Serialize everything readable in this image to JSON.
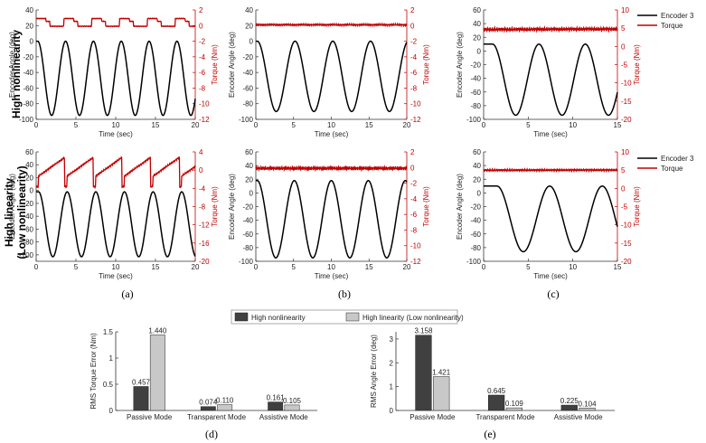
{
  "colors": {
    "encoder": "#000000",
    "torque": "#c00000",
    "bar_high": "#404040",
    "bar_low": "#c8c8c8"
  },
  "row_labels": [
    "High nonlinearity",
    "High linearity",
    "(Low nonlinearity)"
  ],
  "captions": [
    "(a)",
    "(b)",
    "(c)",
    "(d)",
    "(e)"
  ],
  "time_plots": [
    {
      "id": "a1",
      "type": "line",
      "xlabel": "Time (sec)",
      "ylabel": "Encoder Angle (deg)",
      "y2label": "Torque (Nm)",
      "xlim": [
        0,
        20
      ],
      "xticks": [
        0,
        5,
        10,
        15,
        20
      ],
      "ylim": [
        -100,
        40
      ],
      "yticks": [
        -100,
        -80,
        -60,
        -40,
        -20,
        0,
        20,
        40
      ],
      "y2lim": [
        -12,
        2
      ],
      "y2ticks": [
        -12,
        -10,
        -8,
        -6,
        -4,
        -2,
        0,
        2
      ],
      "encoder": {
        "period": 3.5,
        "min": -95,
        "max": 0,
        "start": 0.2
      },
      "torque": {
        "mode": "square",
        "base": 0.0,
        "amp": 0.9,
        "period": 3.5
      }
    },
    {
      "id": "b1",
      "type": "line",
      "xlabel": "Time (sec)",
      "ylabel": "Encoder Angle (deg)",
      "y2label": "Torque (Nm)",
      "xlim": [
        0,
        20
      ],
      "xticks": [
        0,
        5,
        10,
        15,
        20
      ],
      "ylim": [
        -100,
        40
      ],
      "yticks": [
        -100,
        -80,
        -60,
        -40,
        -20,
        0,
        20,
        40
      ],
      "y2lim": [
        -12,
        2
      ],
      "y2ticks": [
        -12,
        -10,
        -8,
        -6,
        -4,
        -2,
        0,
        2
      ],
      "encoder": {
        "period": 5.0,
        "min": -90,
        "max": 0,
        "start": 0.2
      },
      "torque": {
        "mode": "flat",
        "base": 0.1,
        "amp": 0.12,
        "period": 5.0
      }
    },
    {
      "id": "c1",
      "type": "line",
      "xlabel": "Time (sec)",
      "ylabel": "Encoder Angle (deg)",
      "y2label": "Torque (Nm)",
      "xlim": [
        0,
        15
      ],
      "xticks": [
        0,
        5,
        10,
        15
      ],
      "ylim": [
        -100,
        60
      ],
      "yticks": [
        -100,
        -80,
        -60,
        -40,
        -20,
        0,
        20,
        40,
        60
      ],
      "y2lim": [
        -20,
        10
      ],
      "y2ticks": [
        -20,
        -15,
        -10,
        -5,
        0,
        5,
        10
      ],
      "encoder": {
        "period": 5.2,
        "min": -94,
        "max": 10,
        "start": 1.0
      },
      "torque": {
        "mode": "flat",
        "base": 4.7,
        "amp": 0.5,
        "period": 5.2
      }
    },
    {
      "id": "a2",
      "type": "line",
      "xlabel": "Time (sec)",
      "ylabel": "Encoder Angle (deg)",
      "y2label": "Torque (Nm)",
      "xlim": [
        0,
        20
      ],
      "xticks": [
        0,
        5,
        10,
        15,
        20
      ],
      "ylim": [
        -110,
        60
      ],
      "yticks": [
        -100,
        -80,
        -60,
        -40,
        -20,
        0,
        20,
        40,
        60
      ],
      "y2lim": [
        -20,
        4
      ],
      "y2ticks": [
        -20,
        -16,
        -12,
        -8,
        -4,
        0,
        4
      ],
      "encoder": {
        "period": 3.6,
        "min": -103,
        "max": -2,
        "start": 0.3
      },
      "torque": {
        "mode": "saw",
        "base": 0.0,
        "amp": 2.8,
        "period": 3.6
      }
    },
    {
      "id": "b2",
      "type": "line",
      "xlabel": "Time (sec)",
      "ylabel": "Encoder Angle (deg)",
      "y2label": "Torque (Nm)",
      "xlim": [
        0,
        20
      ],
      "xticks": [
        0,
        5,
        10,
        15,
        20
      ],
      "ylim": [
        -100,
        60
      ],
      "yticks": [
        -100,
        -80,
        -60,
        -40,
        -20,
        0,
        20,
        40,
        60
      ],
      "y2lim": [
        -12,
        2
      ],
      "y2ticks": [
        -12,
        -10,
        -8,
        -6,
        -4,
        -2,
        0,
        2
      ],
      "encoder": {
        "period": 4.9,
        "min": -95,
        "max": 18,
        "start": 0.2
      },
      "torque": {
        "mode": "flat",
        "base": -0.1,
        "amp": 0.25,
        "period": 4.9
      }
    },
    {
      "id": "c2",
      "type": "line",
      "xlabel": "Time (sec)",
      "ylabel": "Encoder Angle (deg)",
      "y2label": "Torque (Nm)",
      "xlim": [
        0,
        15
      ],
      "xticks": [
        0,
        5,
        10,
        15
      ],
      "ylim": [
        -100,
        60
      ],
      "yticks": [
        -100,
        -80,
        -60,
        -40,
        -20,
        0,
        20,
        40,
        60
      ],
      "y2lim": [
        -20,
        10
      ],
      "y2ticks": [
        -20,
        -15,
        -10,
        -5,
        0,
        5,
        10
      ],
      "encoder": {
        "period": 5.9,
        "min": -86,
        "max": 10,
        "start": 1.5
      },
      "torque": {
        "mode": "flat",
        "base": 5.0,
        "amp": 0.3,
        "period": 5.9
      }
    }
  ],
  "time_legend": [
    "Encoder 3",
    "Torque"
  ],
  "chart_data": [
    {
      "type": "bar",
      "id": "d",
      "categories": [
        "Passive Mode",
        "Transparent Mode",
        "Assistive Mode"
      ],
      "ylabel": "RMS Torque Error (Nm)",
      "ylim": [
        0,
        1.5
      ],
      "yticks": [
        "0",
        "0.5",
        "1",
        "1.5"
      ],
      "series": [
        {
          "name": "High nonlinearity",
          "values": [
            0.457,
            0.074,
            0.161
          ],
          "labels": [
            "0.457",
            "0.074",
            "0.161"
          ]
        },
        {
          "name": "High linearity (Low nonlinearity)",
          "values": [
            1.44,
            0.11,
            0.105
          ],
          "labels": [
            "1.440",
            "0.110",
            "0.105"
          ]
        }
      ]
    },
    {
      "type": "bar",
      "id": "e",
      "categories": [
        "Passive Mode",
        "Transparent Mode",
        "Assistive Mode"
      ],
      "ylabel": "RMS Angle Error (deg)",
      "ylim": [
        0,
        3.3
      ],
      "yticks": [
        "0",
        "1",
        "2",
        "3"
      ],
      "series": [
        {
          "name": "High nonlinearity",
          "values": [
            3.158,
            0.645,
            0.225
          ],
          "labels": [
            "3.158",
            "0.645",
            "0.225"
          ]
        },
        {
          "name": "High linearity (Low nonlinearity)",
          "values": [
            1.421,
            0.109,
            0.104
          ],
          "labels": [
            "1.421",
            "0.109",
            "0.104"
          ]
        }
      ]
    }
  ],
  "bar_legend": [
    "High nonlinearity",
    "High linearity (Low nonlinearity)"
  ]
}
